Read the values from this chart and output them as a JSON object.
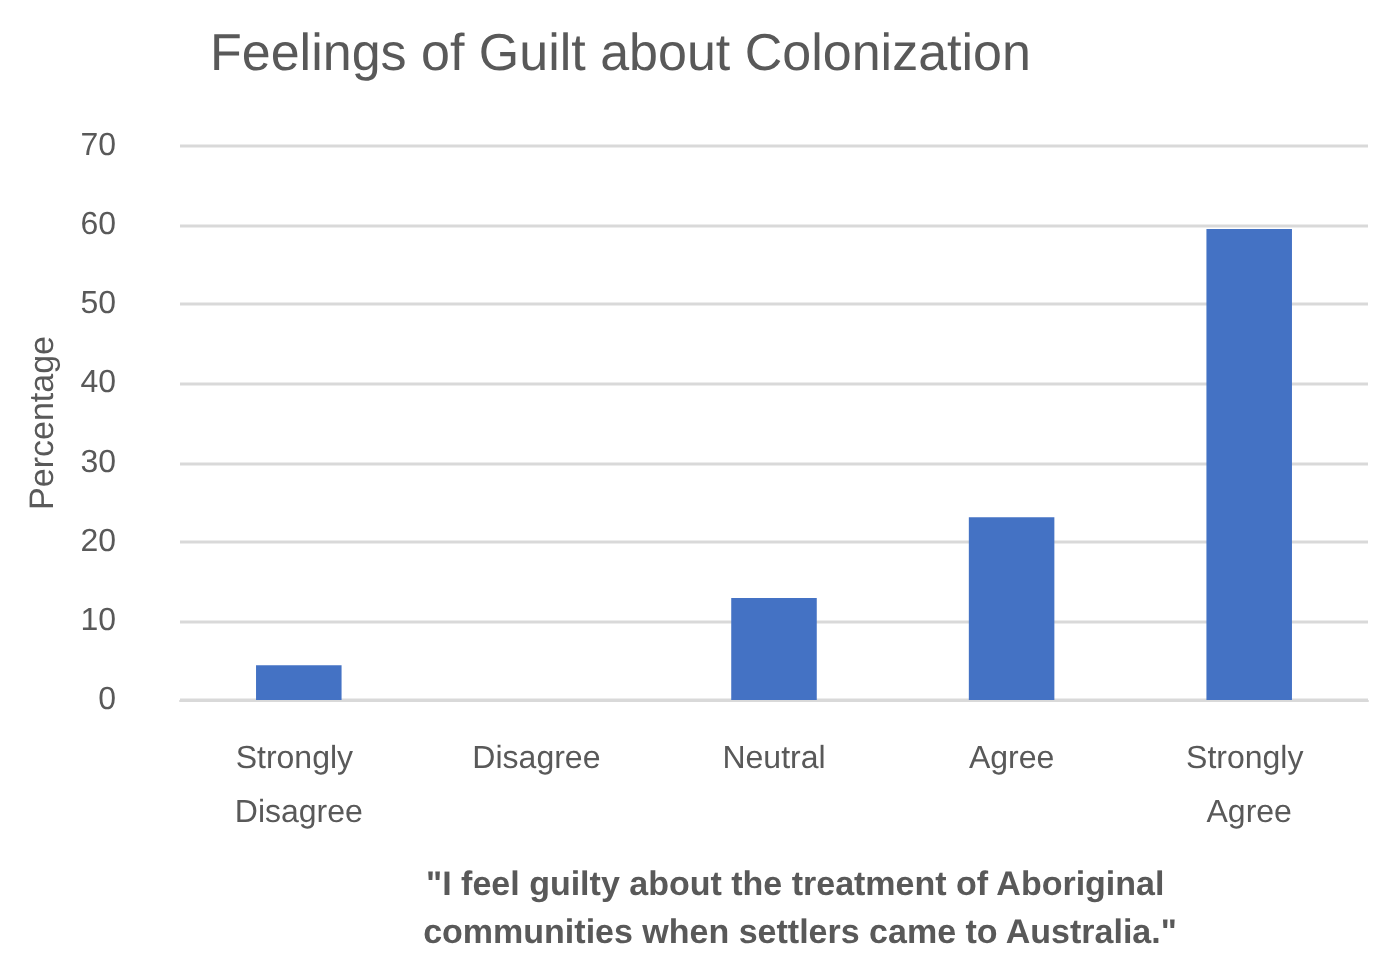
{
  "chart_data": {
    "type": "bar",
    "title": "Feelings of Guilt about Colonization",
    "xlabel": "\"I feel guilty about the treatment of Aboriginal communities when settlers came to Australia.\"",
    "ylabel": "Percentage",
    "categories": [
      "Strongly Disagree",
      "Disagree",
      "Neutral",
      "Agree",
      "Strongly Agree"
    ],
    "values": [
      4.4,
      0,
      12.9,
      23.1,
      59.5
    ],
    "color": "#4472c4",
    "ylim": [
      0,
      70
    ],
    "yticks": [
      0,
      10,
      20,
      30,
      40,
      50,
      60,
      70
    ],
    "grid": "y"
  }
}
